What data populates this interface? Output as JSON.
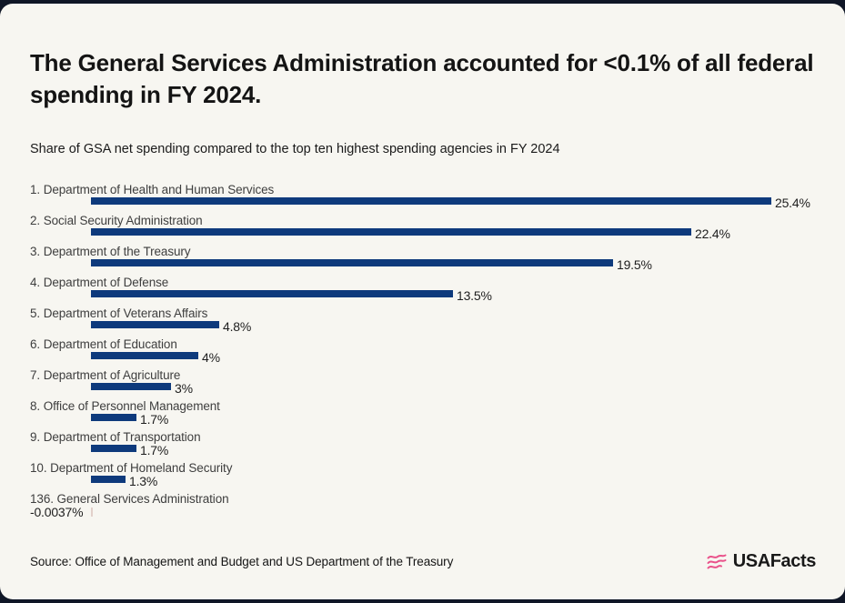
{
  "header": {
    "title": "The General Services Administration accounted for <0.1% of all federal spending in FY 2024.",
    "subtitle": "Share of GSA net spending compared to the top ten highest spending agencies in FY 2024"
  },
  "chart_data": {
    "type": "bar",
    "orientation": "horizontal",
    "title": "Share of GSA net spending compared to the top ten highest spending agencies in FY 2024",
    "xlabel": "",
    "ylabel": "",
    "xlim": [
      0,
      25.4
    ],
    "grid": false,
    "legend": "none",
    "bar_color": "#0e3a7c",
    "negative_tick_color": "#e2d0ca",
    "categories": [
      "1. Department of Health and Human Services",
      "2. Social Security Administration",
      "3. Department of the Treasury",
      "4. Department of Defense",
      "5. Department of Veterans Affairs",
      "6. Department of Education",
      "7. Department of Agriculture",
      "8. Office of Personnel Management",
      "9. Department of Transportation",
      "10. Department of Homeland Security",
      "136. General Services Administration"
    ],
    "rows": [
      {
        "label": "1. Department of Health and Human Services",
        "value": 25.4,
        "value_label": "25.4%"
      },
      {
        "label": "2. Social Security Administration",
        "value": 22.4,
        "value_label": "22.4%"
      },
      {
        "label": "3. Department of the Treasury",
        "value": 19.5,
        "value_label": "19.5%"
      },
      {
        "label": "4. Department of Defense",
        "value": 13.5,
        "value_label": "13.5%"
      },
      {
        "label": "5. Department of Veterans Affairs",
        "value": 4.8,
        "value_label": "4.8%"
      },
      {
        "label": "6. Department of Education",
        "value": 4,
        "value_label": "4%"
      },
      {
        "label": "7. Department of Agriculture",
        "value": 3,
        "value_label": "3%"
      },
      {
        "label": "8. Office of Personnel Management",
        "value": 1.7,
        "value_label": "1.7%"
      },
      {
        "label": "9. Department of Transportation",
        "value": 1.7,
        "value_label": "1.7%"
      },
      {
        "label": "10. Department of Homeland Security",
        "value": 1.3,
        "value_label": "1.3%"
      },
      {
        "label": "136. General Services Administration",
        "value": -0.0037,
        "value_label": "-0.0037%"
      }
    ]
  },
  "footer": {
    "source": "Source: Office of Management and Budget and US Department of the Treasury",
    "brand": "USAFacts"
  },
  "colors": {
    "page_background": "#0f1626",
    "card_background": "#f7f6f1",
    "bar": "#0e3a7c",
    "brand_pink": "#e9518a",
    "title_text": "#141414",
    "label_text": "#3e3e3e"
  }
}
